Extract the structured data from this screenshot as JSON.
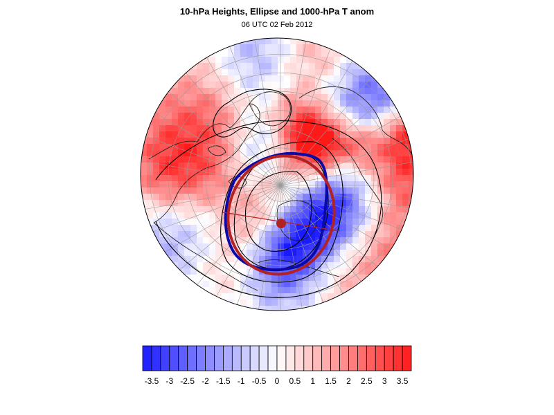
{
  "header": {
    "title": "10-hPa Heights, Ellipse and 1000-hPa T anom",
    "subtitle": "06 UTC 02 Feb 2012"
  },
  "colors": {
    "cold_max": "#1a1aff",
    "warm_max": "#ff1a1a",
    "neutral": "#ffffff",
    "ellipse_fit": "#b22222",
    "contour_highlight": "#0a0aa8",
    "contour": "#000000",
    "coast": "#222222",
    "grid": "#9a9a9a"
  },
  "map": {
    "projection": "orthographic-north-polar",
    "layers": [
      "temperature-anomaly-shading",
      "coastlines",
      "lat-lon-grid",
      "height-contours",
      "highlighted-contour",
      "fitted-ellipse",
      "ellipse-center",
      "ellipse-axis"
    ]
  },
  "colorbar": {
    "levels": [
      -3.75,
      -3.5,
      -3.25,
      -3,
      -2.75,
      -2.5,
      -2.25,
      -2,
      -1.75,
      -1.5,
      -1.25,
      -1,
      -0.75,
      -0.5,
      -0.25,
      0,
      0.25,
      0.5,
      0.75,
      1,
      1.25,
      1.5,
      1.75,
      2,
      2.25,
      2.5,
      2.75,
      3,
      3.25,
      3.5,
      3.75
    ],
    "tick_labels": [
      "-3.5",
      "-3",
      "-2.5",
      "-2",
      "-1.5",
      "-1",
      "-0.5",
      "0",
      "0.5",
      "1",
      "1.5",
      "2",
      "2.5",
      "3",
      "3.5"
    ]
  }
}
